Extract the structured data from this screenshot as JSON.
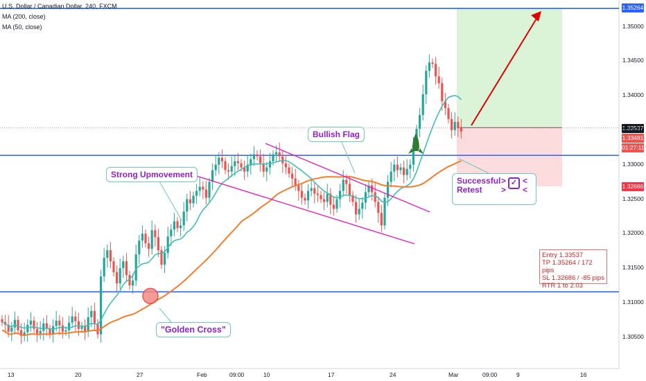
{
  "legend": {
    "symbol": "U.S. Dollar / Canadian Dollar, 240, FXCM",
    "ma200": "MA (200, close)",
    "ma50": "MA (50, close)"
  },
  "annotations": {
    "strong_up": "Strong Upmovement",
    "bullish_flag": "Bullish Flag",
    "golden_cross": "\"Golden Cross\"",
    "retest_line1": "Successful",
    "retest_line2": "Retest",
    "arrows_left": ">",
    "arrows_right": "<"
  },
  "trade_box": {
    "entry": "Entry 1.33537",
    "tp": "TP    1.35264 / 172 pips",
    "sl": "SL    1.32686 / -85 pips",
    "rtr": "RTR  1 to 2.03"
  },
  "price_tags": {
    "tp": "1.35264",
    "entry": "1.33537",
    "last": "1.33481",
    "timer": "01:27:11",
    "sl": "1.32686"
  },
  "colors": {
    "candle_up": "#26a69a",
    "candle_down": "#ef5350",
    "ma200": "#f57c2a",
    "ma50": "#3cbfb5",
    "hline": "#2962ff",
    "flag": "#e020c8",
    "target_zone": "#d7f2d3",
    "stop_zone": "#fcd8d8",
    "arrow": "#e00000",
    "entry_tag": "#131722",
    "last_tag": "#ef5350",
    "sl_tag": "#f23645",
    "tp_tag": "#2962ff"
  },
  "chart_data": {
    "type": "candlestick",
    "symbol": "USDCAD",
    "timeframe": "240",
    "ylim": [
      1.3017,
      1.3545
    ],
    "y_ticks": [
      "1.35000",
      "1.34500",
      "1.34000",
      "1.33500",
      "1.33000",
      "1.32500",
      "1.32000",
      "1.31500",
      "1.31000",
      "1.30500"
    ],
    "x_ticks": [
      "13",
      "20",
      "27",
      "Feb",
      "09:00",
      "10",
      "17",
      "24",
      "Mar",
      "09:00",
      "9",
      "16"
    ],
    "horizontal_levels": [
      1.35264,
      1.33135,
      1.31157
    ],
    "entry": 1.33537,
    "take_profit": 1.35264,
    "stop_loss": 1.32686,
    "last_price": 1.33481,
    "close_series": [
      1.3072,
      1.3068,
      1.3058,
      1.3064,
      1.3075,
      1.306,
      1.3052,
      1.3057,
      1.3068,
      1.3074,
      1.3062,
      1.3055,
      1.3059,
      1.307,
      1.3062,
      1.3054,
      1.3066,
      1.3074,
      1.3067,
      1.3058,
      1.306,
      1.3071,
      1.308,
      1.3073,
      1.3062,
      1.3066,
      1.3058,
      1.3079,
      1.3088,
      1.307,
      1.3054,
      1.3138,
      1.3165,
      1.3176,
      1.316,
      1.3144,
      1.3128,
      1.315,
      1.316,
      1.314,
      1.3125,
      1.3132,
      1.317,
      1.319,
      1.32,
      1.3186,
      1.3178,
      1.3205,
      1.3195,
      1.3176,
      1.3155,
      1.3172,
      1.3196,
      1.3206,
      1.3218,
      1.3208,
      1.3212,
      1.3232,
      1.325,
      1.3244,
      1.3255,
      1.3262,
      1.3268,
      1.3264,
      1.3252,
      1.3275,
      1.3292,
      1.33,
      1.331,
      1.3305,
      1.3292,
      1.329,
      1.3298,
      1.3305,
      1.3302,
      1.3296,
      1.329,
      1.33,
      1.3308,
      1.3315,
      1.3312,
      1.3302,
      1.329,
      1.3296,
      1.3305,
      1.3315,
      1.3318,
      1.3312,
      1.3302,
      1.3296,
      1.3287,
      1.328,
      1.327,
      1.3262,
      1.3252,
      1.3248,
      1.3262,
      1.3266,
      1.3258,
      1.3256,
      1.325,
      1.3246,
      1.3258,
      1.3242,
      1.3236,
      1.325,
      1.3262,
      1.3278,
      1.3272,
      1.3256,
      1.3246,
      1.3228,
      1.3236,
      1.3245,
      1.326,
      1.327,
      1.326,
      1.3246,
      1.323,
      1.3212,
      1.3252,
      1.3275,
      1.329,
      1.33,
      1.3292,
      1.3296,
      1.3285,
      1.3294,
      1.33,
      1.3328,
      1.3352,
      1.3372,
      1.3402,
      1.3436,
      1.3448,
      1.3446,
      1.3428,
      1.3418,
      1.3392,
      1.3382,
      1.3366,
      1.335,
      1.3362,
      1.3354,
      1.3348
    ]
  }
}
